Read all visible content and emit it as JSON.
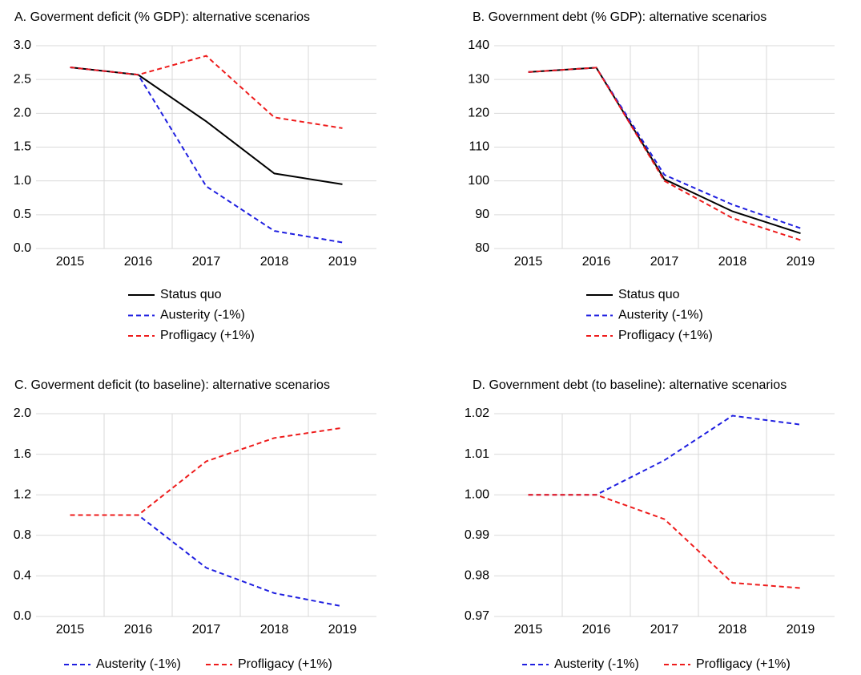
{
  "chart_data": [
    {
      "type": "line",
      "title": "A. Goverment deficit (% GDP): alternative scenarios",
      "categories": [
        "2015",
        "2016",
        "2017",
        "2018",
        "2019"
      ],
      "series": [
        {
          "name": "Status quo",
          "color": "#000000",
          "dashed": false,
          "values": [
            2.68,
            2.57,
            1.88,
            1.11,
            0.95
          ]
        },
        {
          "name": "Austerity (-1%)",
          "color": "#1f1fe0",
          "dashed": true,
          "values": [
            2.68,
            2.57,
            0.92,
            0.26,
            0.09
          ]
        },
        {
          "name": "Profligacy (+1%)",
          "color": "#ee1c1c",
          "dashed": true,
          "values": [
            2.68,
            2.57,
            2.85,
            1.94,
            1.78
          ]
        }
      ],
      "ylim": [
        0,
        3
      ],
      "yticks": [
        {
          "value": 0,
          "label": "0.0"
        },
        0.5,
        {
          "value": 1,
          "label": "1.0"
        },
        1.5,
        {
          "value": 2,
          "label": "2.0"
        },
        2.5,
        {
          "value": 3,
          "label": "3.0"
        }
      ],
      "grid": true,
      "legend": "below-stacked"
    },
    {
      "type": "line",
      "title": "B. Government debt (% GDP): alternative scenarios",
      "categories": [
        "2015",
        "2016",
        "2017",
        "2018",
        "2019"
      ],
      "series": [
        {
          "name": "Status quo",
          "color": "#000000",
          "dashed": false,
          "values": [
            132.2,
            133.5,
            100.5,
            91,
            84.5
          ]
        },
        {
          "name": "Austerity (-1%)",
          "color": "#1f1fe0",
          "dashed": true,
          "values": [
            132.2,
            133.5,
            101.8,
            93,
            86
          ]
        },
        {
          "name": "Profligacy (+1%)",
          "color": "#ee1c1c",
          "dashed": true,
          "values": [
            132.2,
            133.5,
            100,
            89,
            82.5
          ]
        }
      ],
      "ylim": [
        80,
        140
      ],
      "yticks": [
        80,
        90,
        100,
        110,
        120,
        130,
        140
      ],
      "grid": true,
      "legend": "below-stacked"
    },
    {
      "type": "line",
      "title": "C. Goverment deficit (to baseline): alternative scenarios",
      "categories": [
        "2015",
        "2016",
        "2017",
        "2018",
        "2019"
      ],
      "series": [
        {
          "name": "Austerity (-1%)",
          "color": "#1f1fe0",
          "dashed": true,
          "values": [
            1,
            1,
            0.48,
            0.23,
            0.1
          ]
        },
        {
          "name": "Profligacy (+1%)",
          "color": "#ee1c1c",
          "dashed": true,
          "values": [
            1,
            1,
            1.53,
            1.76,
            1.86
          ]
        }
      ],
      "ylim": [
        0,
        2
      ],
      "yticks": [
        {
          "value": 0,
          "label": "0.0"
        },
        0.4,
        0.8,
        1.2,
        1.6,
        {
          "value": 2,
          "label": "2.0"
        }
      ],
      "grid": true,
      "legend": "below-row"
    },
    {
      "type": "line",
      "title": "D. Government debt (to baseline): alternative scenarios",
      "categories": [
        "2015",
        "2016",
        "2017",
        "2018",
        "2019"
      ],
      "series": [
        {
          "name": "Austerity (-1%)",
          "color": "#1f1fe0",
          "dashed": true,
          "values": [
            1,
            1,
            1.0085,
            1.0195,
            1.0173
          ]
        },
        {
          "name": "Profligacy (+1%)",
          "color": "#ee1c1c",
          "dashed": true,
          "values": [
            1,
            1,
            0.994,
            0.9783,
            0.977
          ]
        }
      ],
      "ylim": [
        0.97,
        1.02
      ],
      "yticks": [
        0.97,
        0.98,
        0.99,
        {
          "value": 1,
          "label": "1.00"
        },
        1.01,
        1.02
      ],
      "grid": true,
      "legend": "below-row"
    }
  ]
}
